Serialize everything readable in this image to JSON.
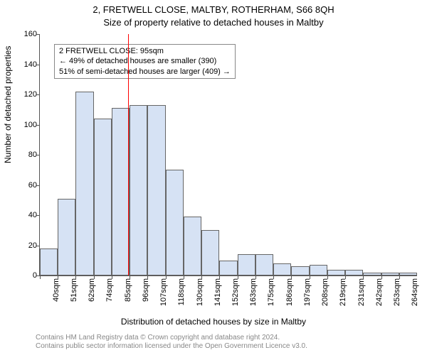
{
  "title_line1": "2, FRETWELL CLOSE, MALTBY, ROTHERHAM, S66 8QH",
  "title_line2": "Size of property relative to detached houses in Maltby",
  "ylabel": "Number of detached properties",
  "xlabel": "Distribution of detached houses by size in Maltby",
  "footer_line1": "Contains HM Land Registry data © Crown copyright and database right 2024.",
  "footer_line2": "Contains public sector information licensed under the Open Government Licence v3.0.",
  "chart": {
    "type": "histogram",
    "ylim": [
      0,
      160
    ],
    "ytick_step": 20,
    "x_categories": [
      "40sqm",
      "51sqm",
      "62sqm",
      "74sqm",
      "85sqm",
      "96sqm",
      "107sqm",
      "118sqm",
      "130sqm",
      "141sqm",
      "152sqm",
      "163sqm",
      "175sqm",
      "186sqm",
      "197sqm",
      "208sqm",
      "219sqm",
      "231sqm",
      "242sqm",
      "253sqm",
      "264sqm"
    ],
    "values": [
      18,
      51,
      122,
      104,
      111,
      113,
      113,
      70,
      39,
      30,
      10,
      14,
      14,
      8,
      6,
      7,
      4,
      4,
      2,
      2,
      2
    ],
    "bar_color": "#d6e2f4",
    "bar_border_color": "#666666",
    "background_color": "#ffffff",
    "axis_color": "#555555",
    "reference_line": {
      "x_value_sqm": 95,
      "color": "#ff0000",
      "width": 1
    },
    "annotation": {
      "line1": "2 FRETWELL CLOSE: 95sqm",
      "line2": "← 49% of detached houses are smaller (390)",
      "line3": "51% of semi-detached houses are larger (409) →",
      "border_color": "#888888",
      "bg_color": "#ffffff",
      "fontsize": 11
    }
  }
}
